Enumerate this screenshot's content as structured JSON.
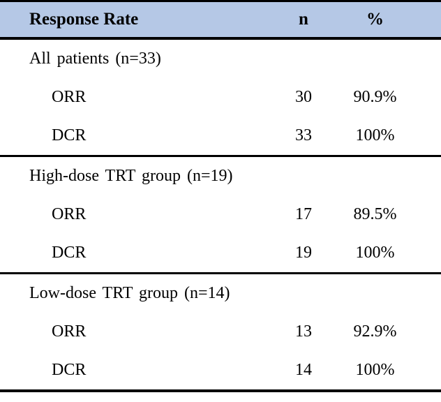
{
  "colors": {
    "header_bg": "#b5c8e6",
    "border": "#000000"
  },
  "table": {
    "header": {
      "col_label": "Response Rate",
      "col_n": "n",
      "col_pct": "%"
    },
    "sections": [
      {
        "title": "All patients (n=33)",
        "rows": [
          {
            "label": "ORR",
            "n": "30",
            "pct": "90.9%"
          },
          {
            "label": "DCR",
            "n": "33",
            "pct": "100%"
          }
        ]
      },
      {
        "title": "High-dose TRT group (n=19)",
        "rows": [
          {
            "label": "ORR",
            "n": "17",
            "pct": "89.5%"
          },
          {
            "label": "DCR",
            "n": "19",
            "pct": "100%"
          }
        ]
      },
      {
        "title": "Low-dose TRT group (n=14)",
        "rows": [
          {
            "label": "ORR",
            "n": "13",
            "pct": "92.9%"
          },
          {
            "label": "DCR",
            "n": "14",
            "pct": "100%"
          }
        ]
      }
    ]
  }
}
